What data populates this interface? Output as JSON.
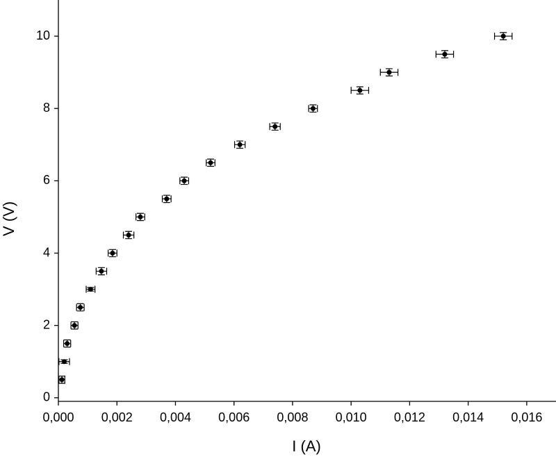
{
  "chart_data": {
    "type": "scatter",
    "x_label": "I (A)",
    "y_label": "V (V)",
    "xlim": [
      0,
      0.017
    ],
    "ylim": [
      -0.1,
      11
    ],
    "xticks": [
      {
        "value": 0,
        "label": "0,000"
      },
      {
        "value": 0.002,
        "label": "0,002"
      },
      {
        "value": 0.004,
        "label": "0,004"
      },
      {
        "value": 0.006,
        "label": "0,006"
      },
      {
        "value": 0.008,
        "label": "0,008"
      },
      {
        "value": 0.01,
        "label": "0,010"
      },
      {
        "value": 0.012,
        "label": "0,012"
      },
      {
        "value": 0.014,
        "label": "0,014"
      },
      {
        "value": 0.016,
        "label": "0,016"
      }
    ],
    "yticks": [
      0,
      2,
      4,
      6,
      8,
      10
    ],
    "grid": false,
    "series": [
      {
        "color": "#000000",
        "x": [
          0.00012,
          0.0002,
          0.0003,
          0.00055,
          0.00075,
          0.0011,
          0.00147,
          0.00185,
          0.0024,
          0.0028,
          0.0037,
          0.0043,
          0.0052,
          0.0062,
          0.0074,
          0.0087,
          0.0103,
          0.0113,
          0.0132,
          0.0152
        ],
        "values": [
          0.5,
          1,
          1.5,
          2,
          2.5,
          3,
          3.5,
          4,
          4.5,
          5,
          5.5,
          6,
          6.5,
          7,
          7.5,
          8,
          8.5,
          9,
          9.5,
          10
        ],
        "xerr": [
          0.0001,
          0.00018,
          0.00012,
          0.00012,
          0.00013,
          0.00015,
          0.00018,
          0.00015,
          0.00018,
          0.00015,
          0.00015,
          0.00015,
          0.00015,
          0.00018,
          0.00018,
          0.00015,
          0.0003,
          0.0003,
          0.0003,
          0.0003
        ],
        "yerr": [
          0.1,
          0.05,
          0.1,
          0.1,
          0.1,
          0.05,
          0.1,
          0.1,
          0.1,
          0.1,
          0.1,
          0.1,
          0.1,
          0.1,
          0.1,
          0.1,
          0.1,
          0.1,
          0.1,
          0.1
        ]
      }
    ]
  }
}
